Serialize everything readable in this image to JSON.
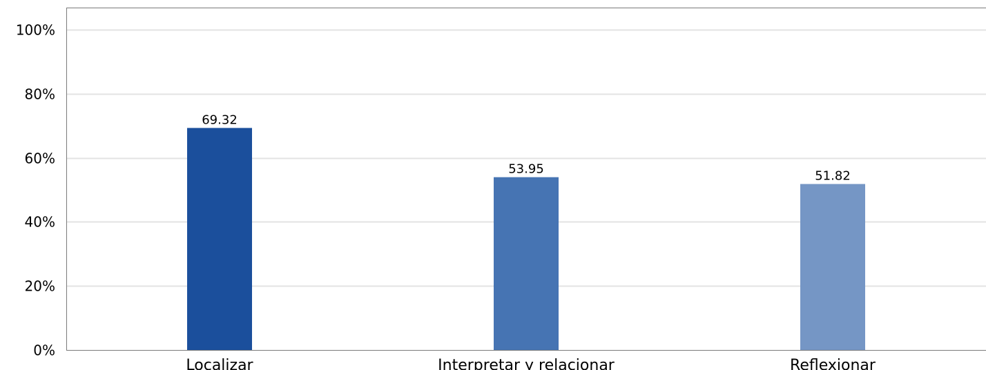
{
  "chart_data": {
    "type": "bar",
    "title": "",
    "xlabel": "",
    "ylabel": "",
    "categories": [
      "Localizar",
      "Interpretar y relacionar",
      "Reflexionar"
    ],
    "values": [
      69.32,
      53.95,
      51.82
    ],
    "value_labels": [
      "69.32",
      "53.95",
      "51.82"
    ],
    "colors": [
      "#1b4f9c",
      "#4674b3",
      "#7596c5"
    ],
    "ylim": [
      0,
      100
    ],
    "yticks": [
      0,
      20,
      40,
      60,
      80,
      100
    ],
    "ytick_labels": [
      "0%",
      "20%",
      "40%",
      "60%",
      "80%",
      "100%"
    ],
    "grid": true,
    "legend": "none"
  }
}
